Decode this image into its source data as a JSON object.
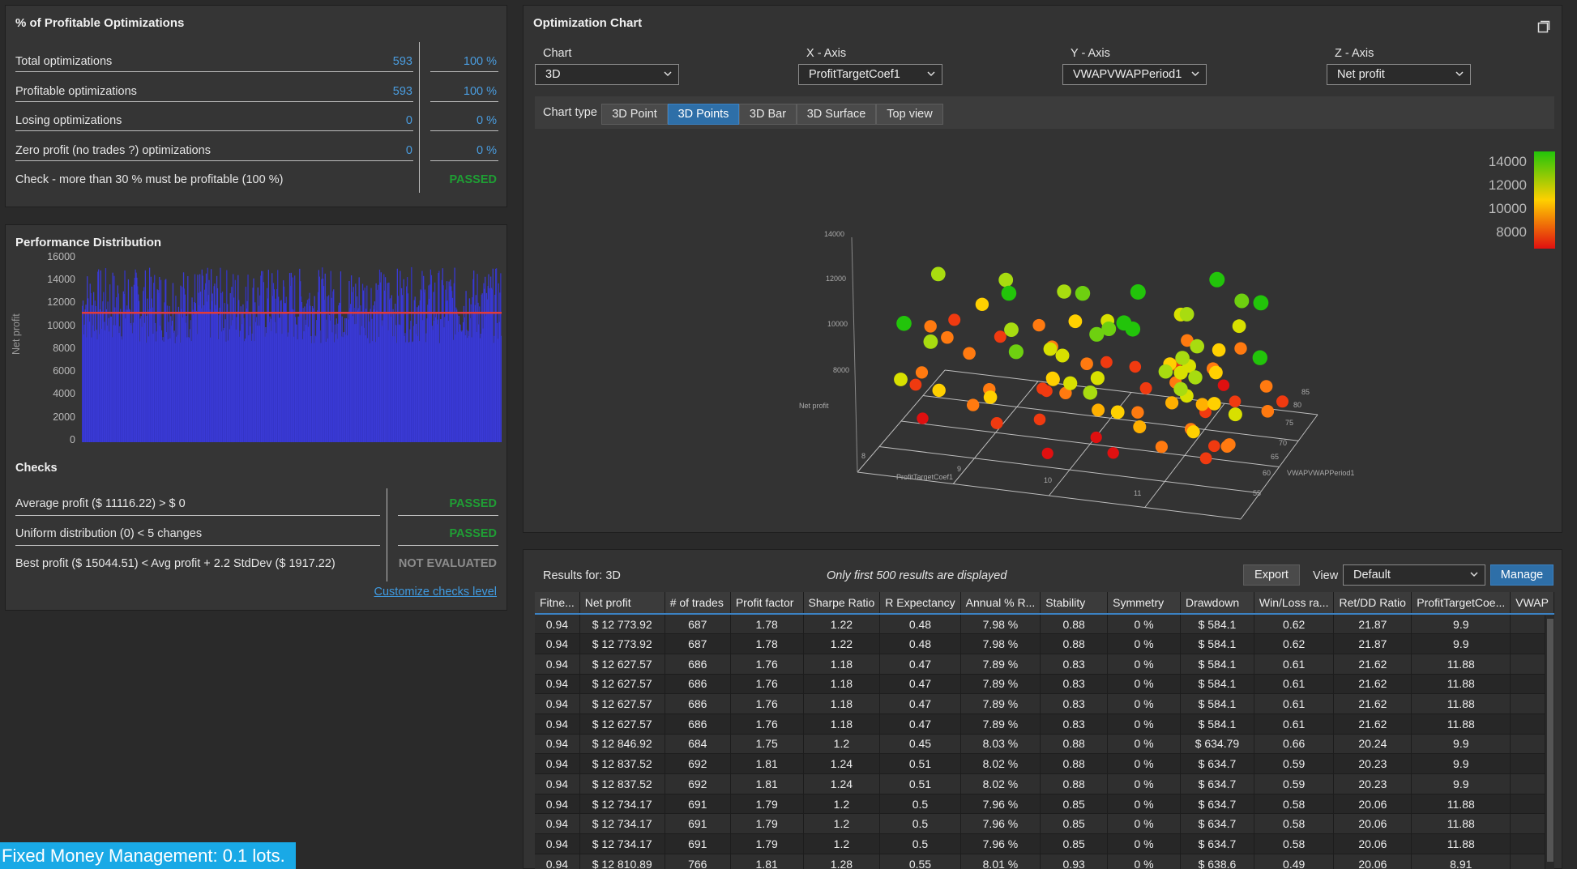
{
  "profitable": {
    "title": "% of Profitable Optimizations",
    "rows": [
      {
        "label": "Total optimizations",
        "count": "593",
        "pct": "100 %"
      },
      {
        "label": "Profitable optimizations",
        "count": "593",
        "pct": "100 %"
      },
      {
        "label": "Losing optimizations",
        "count": "0",
        "pct": "0 %"
      },
      {
        "label": "Zero profit (no trades ?) optimizations",
        "count": "0",
        "pct": "0 %"
      }
    ],
    "check_label": "Check - more than 30 % must be profitable (100 %)",
    "check_status": "PASSED"
  },
  "performance": {
    "title": "Performance Distribution",
    "ylabel": "Net profit",
    "yticks": [
      "16000",
      "14000",
      "12000",
      "10000",
      "8000",
      "6000",
      "4000",
      "2000",
      "0"
    ],
    "checks_title": "Checks",
    "checks": [
      {
        "label": "Average profit ($ 11116.22) > $ 0",
        "status": "PASSED"
      },
      {
        "label": "Uniform distribution (0) < 5 changes",
        "status": "PASSED"
      },
      {
        "label": "Best profit ($ 15044.51) < Avg profit + 2.2 StdDev ($ 1917.22)",
        "status": "NOT EVALUATED"
      }
    ],
    "customize_link": "Customize checks level"
  },
  "chart_data": {
    "type": "bar",
    "ylabel": "Net profit",
    "ylim": [
      0,
      16000
    ],
    "bar_count": 593,
    "average_line": 11116.22,
    "min_value": 8000,
    "max_value": 15044.51,
    "bar_color": "#3a3ad6",
    "line_color": "#e23b3b"
  },
  "optimization_chart": {
    "title": "Optimization Chart",
    "fields": [
      {
        "label": "Chart",
        "value": "3D"
      },
      {
        "label": "X - Axis",
        "value": "ProfitTargetCoef1"
      },
      {
        "label": "Y - Axis",
        "value": "VWAPVWAPPeriod1"
      },
      {
        "label": "Z - Axis",
        "value": "Net profit"
      }
    ],
    "chart_type_label": "Chart type",
    "chart_types": [
      "3D Point",
      "3D Points",
      "3D Bar",
      "3D Surface",
      "Top view"
    ],
    "active_type": "3D Points",
    "plot": {
      "z_label": "Net profit",
      "x_label": "ProfitTargetCoef1",
      "y_label": "VWAPVWAPPeriod1",
      "z_ticks": [
        "14000",
        "12000",
        "10000",
        "8000"
      ],
      "x_ticks": [
        "8",
        "9",
        "10",
        "11"
      ],
      "y_ticks": [
        "85",
        "80",
        "75",
        "70",
        "65",
        "60",
        "55"
      ],
      "legend_ticks": [
        "14000",
        "12000",
        "10000",
        "8000"
      ],
      "color_high": "#22c40a",
      "color_mid": "#ffd000",
      "color_low": "#e01010"
    }
  },
  "results": {
    "label": "Results for: 3D",
    "note": "Only first 500 results are displayed",
    "export": "Export",
    "view_label": "View",
    "view_value": "Default",
    "manage": "Manage",
    "columns": [
      "Fitne...",
      "Net profit",
      "# of trades",
      "Profit factor",
      "Sharpe Ratio",
      "R Expectancy",
      "Annual % R...",
      "Stability",
      "Symmetry",
      "Drawdown",
      "Win/Loss ra...",
      "Ret/DD Ratio",
      "ProfitTargetCoe...",
      "VWAP"
    ],
    "rows": [
      [
        "0.94",
        "$ 12 773.92",
        "687",
        "1.78",
        "1.22",
        "0.48",
        "7.98 %",
        "0.88",
        "0 %",
        "$ 584.1",
        "0.62",
        "21.87",
        "9.9",
        ""
      ],
      [
        "0.94",
        "$ 12 773.92",
        "687",
        "1.78",
        "1.22",
        "0.48",
        "7.98 %",
        "0.88",
        "0 %",
        "$ 584.1",
        "0.62",
        "21.87",
        "9.9",
        ""
      ],
      [
        "0.94",
        "$ 12 627.57",
        "686",
        "1.76",
        "1.18",
        "0.47",
        "7.89 %",
        "0.83",
        "0 %",
        "$ 584.1",
        "0.61",
        "21.62",
        "11.88",
        ""
      ],
      [
        "0.94",
        "$ 12 627.57",
        "686",
        "1.76",
        "1.18",
        "0.47",
        "7.89 %",
        "0.83",
        "0 %",
        "$ 584.1",
        "0.61",
        "21.62",
        "11.88",
        ""
      ],
      [
        "0.94",
        "$ 12 627.57",
        "686",
        "1.76",
        "1.18",
        "0.47",
        "7.89 %",
        "0.83",
        "0 %",
        "$ 584.1",
        "0.61",
        "21.62",
        "11.88",
        ""
      ],
      [
        "0.94",
        "$ 12 627.57",
        "686",
        "1.76",
        "1.18",
        "0.47",
        "7.89 %",
        "0.83",
        "0 %",
        "$ 584.1",
        "0.61",
        "21.62",
        "11.88",
        ""
      ],
      [
        "0.94",
        "$ 12 846.92",
        "684",
        "1.75",
        "1.2",
        "0.45",
        "8.03 %",
        "0.88",
        "0 %",
        "$ 634.79",
        "0.66",
        "20.24",
        "9.9",
        ""
      ],
      [
        "0.94",
        "$ 12 837.52",
        "692",
        "1.81",
        "1.24",
        "0.51",
        "8.02 %",
        "0.88",
        "0 %",
        "$ 634.7",
        "0.59",
        "20.23",
        "9.9",
        ""
      ],
      [
        "0.94",
        "$ 12 837.52",
        "692",
        "1.81",
        "1.24",
        "0.51",
        "8.02 %",
        "0.88",
        "0 %",
        "$ 634.7",
        "0.59",
        "20.23",
        "9.9",
        ""
      ],
      [
        "0.94",
        "$ 12 734.17",
        "691",
        "1.79",
        "1.2",
        "0.5",
        "7.96 %",
        "0.85",
        "0 %",
        "$ 634.7",
        "0.58",
        "20.06",
        "11.88",
        ""
      ],
      [
        "0.94",
        "$ 12 734.17",
        "691",
        "1.79",
        "1.2",
        "0.5",
        "7.96 %",
        "0.85",
        "0 %",
        "$ 634.7",
        "0.58",
        "20.06",
        "11.88",
        ""
      ],
      [
        "0.94",
        "$ 12 734.17",
        "691",
        "1.79",
        "1.2",
        "0.5",
        "7.96 %",
        "0.85",
        "0 %",
        "$ 634.7",
        "0.58",
        "20.06",
        "11.88",
        ""
      ],
      [
        "0.94",
        "$ 12 810.89",
        "766",
        "1.81",
        "1.28",
        "0.55",
        "8.01 %",
        "0.93",
        "0 %",
        "$ 638.6",
        "0.49",
        "20.06",
        "8.91",
        ""
      ]
    ]
  },
  "money_management": "Fixed Money Management: 0.1 lots."
}
